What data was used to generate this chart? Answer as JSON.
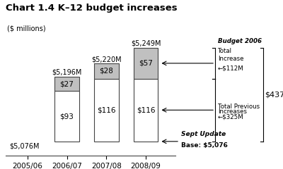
{
  "title": "Chart 1.4 K–12 budget increases",
  "ylabel": "($ millions)",
  "base": 5076,
  "categories": [
    "2005/06",
    "2006/07",
    "2007/08",
    "2008/09"
  ],
  "white_segments": [
    0,
    93,
    116,
    116
  ],
  "gray_segments": [
    0,
    27,
    28,
    57
  ],
  "bar_totals_label": [
    "$5,076M",
    "$5,196M",
    "$5,220M",
    "$5,249M"
  ],
  "white_labels": [
    "",
    "$93",
    "$116",
    "$116"
  ],
  "gray_labels": [
    "",
    "$27",
    "$28",
    "$57"
  ],
  "bar_color_white": "#ffffff",
  "bar_color_gray": "#c0c0c0",
  "bar_edge_color": "#444444",
  "background_color": "#ffffff",
  "ylim": [
    5050,
    5275
  ],
  "figsize": [
    4.0,
    2.4
  ],
  "dpi": 100,
  "ann_sept_update": "Sept Update",
  "ann_base": "Base: $5,076",
  "ann_total_prev_line1": "Total Previous",
  "ann_total_prev_line2": "Increases",
  "ann_total_prev_val": "$325M",
  "ann_budget_2006": "Budget 2006",
  "ann_total_increase": "Total",
  "ann_increase2": "Increase",
  "ann_112M": "←$112M",
  "ann_325M": "←$325M",
  "ann_base_arrow": "←",
  "ann_437M": "$437M"
}
